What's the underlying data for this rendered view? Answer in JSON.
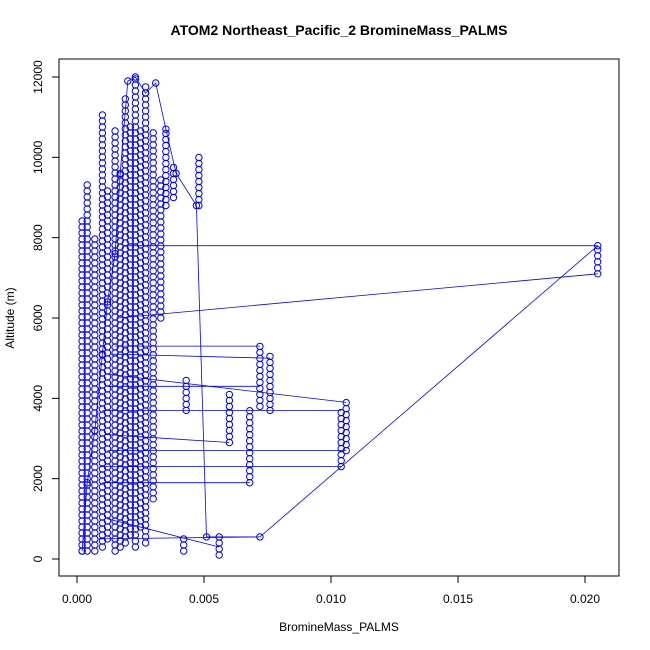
{
  "chart_data": {
    "type": "scatter",
    "title": "ATOM2 Northeast_Pacific_2 BromineMass_PALMS",
    "xlabel": "BromineMass_PALMS",
    "ylabel": "Altitude (m)",
    "xlim": [
      0.0,
      0.0206
    ],
    "ylim": [
      0,
      12000
    ],
    "x_ticks": [
      0.0,
      0.005,
      0.01,
      0.015,
      0.02
    ],
    "x_tick_labels": [
      "0.000",
      "0.005",
      "0.010",
      "0.015",
      "0.020"
    ],
    "y_ticks": [
      0,
      2000,
      4000,
      6000,
      8000,
      10000,
      12000
    ],
    "y_tick_labels": [
      "0",
      "2000",
      "4000",
      "6000",
      "8000",
      "10000",
      "12000"
    ],
    "grid": false,
    "legend": "none",
    "color": "#0000ff",
    "marker": "open-circle",
    "connected": true,
    "series": [
      {
        "segments": [
          {
            "x": 0.0002,
            "y0": 200,
            "y1": 8500
          },
          {
            "x": 0.0004,
            "y0": 200,
            "y1": 9400
          },
          {
            "x": 0.0007,
            "y0": 200,
            "y1": 8000
          },
          {
            "x": 0.001,
            "y0": 300,
            "y1": 11100
          },
          {
            "x": 0.0012,
            "y0": 500,
            "y1": 9300
          },
          {
            "x": 0.0015,
            "y0": 200,
            "y1": 10800
          },
          {
            "x": 0.0017,
            "y0": 300,
            "y1": 9600
          },
          {
            "x": 0.0019,
            "y0": 400,
            "y1": 11600
          },
          {
            "x": 0.0021,
            "y0": 600,
            "y1": 10800
          },
          {
            "x": 0.0023,
            "y0": 300,
            "y1": 12000
          },
          {
            "x": 0.0025,
            "y0": 800,
            "y1": 10700
          },
          {
            "x": 0.0027,
            "y0": 400,
            "y1": 11800
          },
          {
            "x": 0.003,
            "y0": 1500,
            "y1": 10700
          },
          {
            "x": 0.0033,
            "y0": 6000,
            "y1": 9500
          },
          {
            "x": 0.0035,
            "y0": 8800,
            "y1": 10700
          },
          {
            "x": 0.0038,
            "y0": 9000,
            "y1": 9800
          },
          {
            "x": 0.0042,
            "y0": 200,
            "y1": 500
          },
          {
            "x": 0.0043,
            "y0": 3700,
            "y1": 4500
          },
          {
            "x": 0.0048,
            "y0": 8800,
            "y1": 10000
          },
          {
            "x": 0.0056,
            "y0": 100,
            "y1": 600
          },
          {
            "x": 0.006,
            "y0": 2900,
            "y1": 4200
          },
          {
            "x": 0.0068,
            "y0": 1900,
            "y1": 3700
          },
          {
            "x": 0.0072,
            "y0": 3800,
            "y1": 5300
          },
          {
            "x": 0.0076,
            "y0": 3700,
            "y1": 5100
          },
          {
            "x": 0.0104,
            "y0": 2300,
            "y1": 3700
          },
          {
            "x": 0.0106,
            "y0": 2700,
            "y1": 3900
          },
          {
            "x": 0.0205,
            "y0": 7100,
            "y1": 7800
          }
        ],
        "points": [
          {
            "x": 0.0002,
            "y": 200
          },
          {
            "x": 0.0004,
            "y": 1900
          },
          {
            "x": 0.0007,
            "y": 3200
          },
          {
            "x": 0.001,
            "y": 5100
          },
          {
            "x": 0.0012,
            "y": 6400
          },
          {
            "x": 0.0015,
            "y": 7600
          },
          {
            "x": 0.0017,
            "y": 9600
          },
          {
            "x": 0.002,
            "y": 11900
          },
          {
            "x": 0.0023,
            "y": 12000
          },
          {
            "x": 0.0027,
            "y": 11600
          },
          {
            "x": 0.0031,
            "y": 11850
          },
          {
            "x": 0.0035,
            "y": 10700
          },
          {
            "x": 0.0039,
            "y": 9600
          },
          {
            "x": 0.0047,
            "y": 8800
          },
          {
            "x": 0.0051,
            "y": 550
          },
          {
            "x": 0.0072,
            "y": 550
          },
          {
            "x": 0.0205,
            "y": 7800
          }
        ]
      }
    ]
  }
}
